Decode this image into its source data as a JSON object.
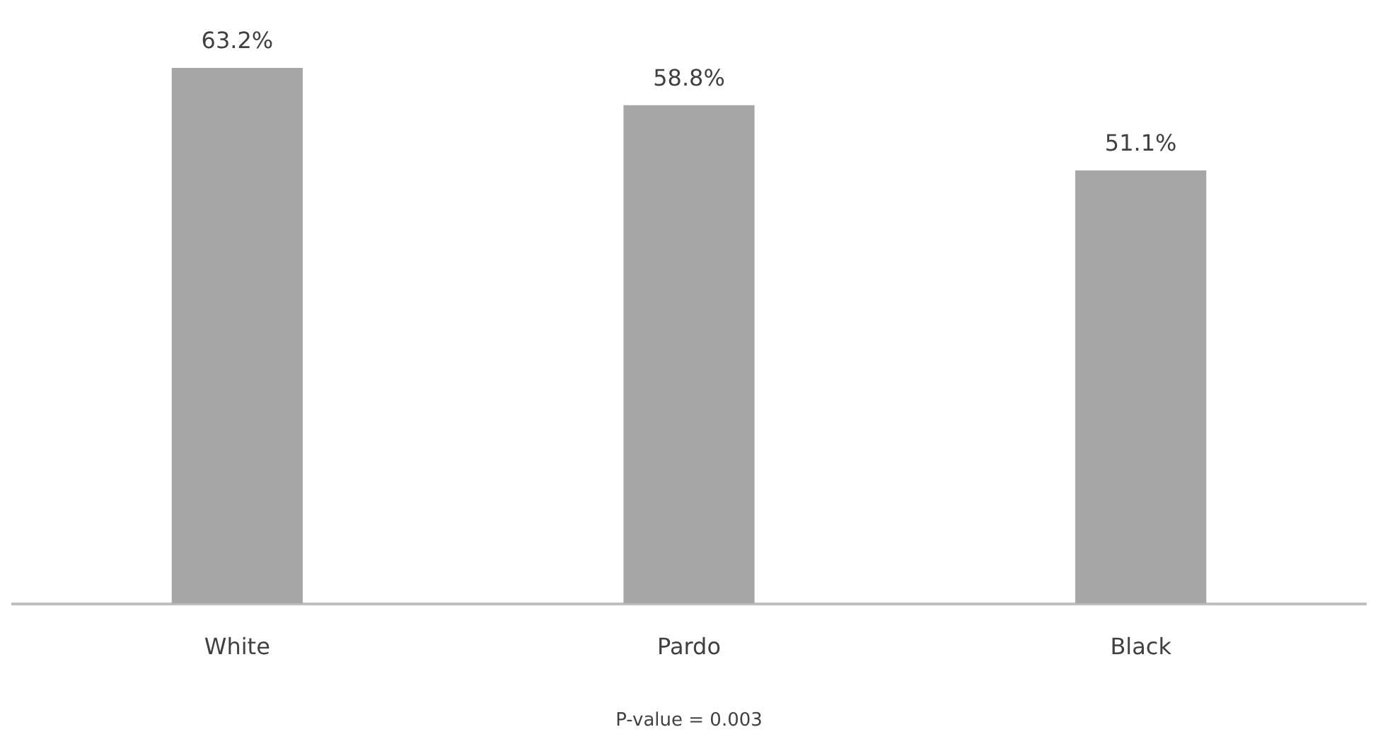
{
  "chart_data": {
    "type": "bar",
    "categories": [
      "White",
      "Pardo",
      "Black"
    ],
    "values": [
      63.2,
      58.8,
      51.1
    ],
    "value_labels": [
      "63.2%",
      "58.8%",
      "51.1%"
    ],
    "color": "#a6a6a6",
    "grid": false,
    "legend": false,
    "annotations": [
      "P-value = 0.003"
    ]
  }
}
